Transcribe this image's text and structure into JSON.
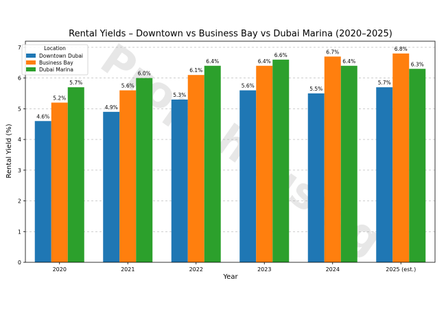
{
  "chart_data": {
    "type": "bar",
    "title": "Rental Yields – Downtown vs Business Bay vs Dubai Marina (2020–2025)",
    "xlabel": "Year",
    "ylabel": "Rental Yield (%)",
    "ylim": [
      0,
      7.2
    ],
    "yticks": [
      "0",
      "1",
      "2",
      "3",
      "4",
      "5",
      "6",
      "7"
    ],
    "grid": "y-dashed",
    "legend_position": "top-left",
    "legend_title": "Location",
    "categories": [
      "2020",
      "2021",
      "2022",
      "2023",
      "2024",
      "2025 (est.)"
    ],
    "series": [
      {
        "name": "Downtown Dubai",
        "color": "#1f77b4",
        "values": [
          4.6,
          4.9,
          5.3,
          5.6,
          5.5,
          5.7
        ],
        "labels": [
          "4.6%",
          "4.9%",
          "5.3%",
          "5.6%",
          "5.5%",
          "5.7%"
        ]
      },
      {
        "name": "Business Bay",
        "color": "#ff7f0e",
        "values": [
          5.2,
          5.6,
          6.1,
          6.4,
          6.7,
          6.8
        ],
        "labels": [
          "5.2%",
          "5.6%",
          "6.1%",
          "6.4%",
          "6.7%",
          "6.8%"
        ]
      },
      {
        "name": "Dubai Marina",
        "color": "#2ca02c",
        "values": [
          5.7,
          6.0,
          6.4,
          6.6,
          6.4,
          6.3
        ],
        "labels": [
          "5.7%",
          "6.0%",
          "6.4%",
          "6.6%",
          "6.4%",
          "6.3%"
        ]
      }
    ],
    "watermark": "Propehousing"
  }
}
